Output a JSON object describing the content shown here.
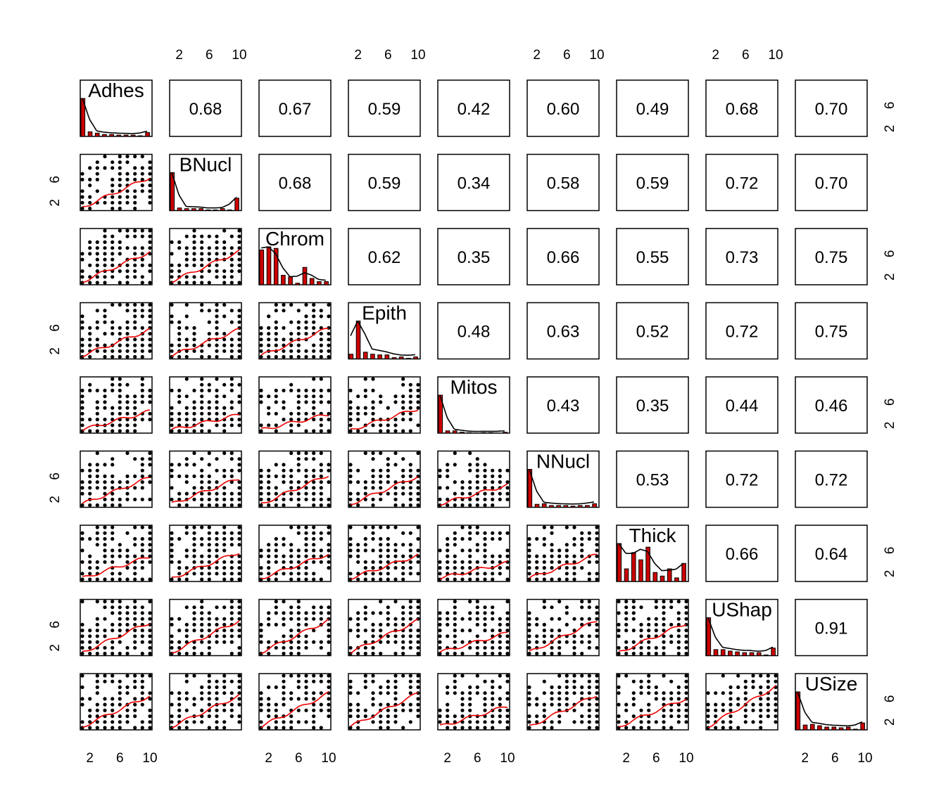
{
  "chart_data": {
    "type": "scatter-matrix",
    "title": "",
    "variables": [
      "Adhes",
      "BNucl",
      "Chrom",
      "Epith",
      "Mitos",
      "NNucl",
      "Thick",
      "UShap",
      "USize"
    ],
    "axis_range": [
      1,
      10
    ],
    "tick_labels": [
      "2",
      "6",
      "10"
    ],
    "tick_values": [
      2,
      6,
      10
    ],
    "correlations": [
      [
        null,
        0.68,
        0.67,
        0.59,
        0.42,
        0.6,
        0.49,
        0.68,
        0.7
      ],
      [
        null,
        null,
        0.68,
        0.59,
        0.34,
        0.58,
        0.59,
        0.72,
        0.7
      ],
      [
        null,
        null,
        null,
        0.62,
        0.35,
        0.66,
        0.55,
        0.73,
        0.75
      ],
      [
        null,
        null,
        null,
        null,
        0.48,
        0.63,
        0.52,
        0.72,
        0.75
      ],
      [
        null,
        null,
        null,
        null,
        null,
        0.43,
        0.35,
        0.44,
        0.46
      ],
      [
        null,
        null,
        null,
        null,
        null,
        null,
        0.53,
        0.72,
        0.72
      ],
      [
        null,
        null,
        null,
        null,
        null,
        null,
        null,
        0.66,
        0.64
      ],
      [
        null,
        null,
        null,
        null,
        null,
        null,
        null,
        null,
        0.91
      ],
      [
        null,
        null,
        null,
        null,
        null,
        null,
        null,
        null,
        null
      ]
    ],
    "correlation_labels": [
      [
        "",
        "0.68",
        "0.67",
        "0.59",
        "0.42",
        "0.60",
        "0.49",
        "0.68",
        "0.70"
      ],
      [
        "",
        "",
        "0.68",
        "0.59",
        "0.34",
        "0.58",
        "0.59",
        "0.72",
        "0.70"
      ],
      [
        "",
        "",
        "",
        "0.62",
        "0.35",
        "0.66",
        "0.55",
        "0.73",
        "0.75"
      ],
      [
        "",
        "",
        "",
        "",
        "0.48",
        "0.63",
        "0.52",
        "0.72",
        "0.75"
      ],
      [
        "",
        "",
        "",
        "",
        "",
        "0.43",
        "0.35",
        "0.44",
        "0.46"
      ],
      [
        "",
        "",
        "",
        "",
        "",
        "",
        "0.53",
        "0.72",
        "0.72"
      ],
      [
        "",
        "",
        "",
        "",
        "",
        "",
        "",
        "0.66",
        "0.64"
      ],
      [
        "",
        "",
        "",
        "",
        "",
        "",
        "",
        "",
        "0.91"
      ],
      [
        "",
        "",
        "",
        "",
        "",
        "",
        "",
        "",
        ""
      ]
    ],
    "histograms": {
      "Adhes": [
        0.58,
        0.07,
        0.05,
        0.03,
        0.03,
        0.02,
        0.02,
        0.02,
        0.01,
        0.06
      ],
      "BNucl": [
        0.58,
        0.04,
        0.03,
        0.03,
        0.03,
        0.01,
        0.01,
        0.03,
        0.01,
        0.19
      ],
      "Chrom": [
        0.22,
        0.24,
        0.23,
        0.06,
        0.05,
        0.01,
        0.11,
        0.04,
        0.02,
        0.02
      ],
      "Epith": [
        0.07,
        0.56,
        0.1,
        0.07,
        0.06,
        0.06,
        0.02,
        0.03,
        0.01,
        0.03
      ],
      "Mitos": [
        0.83,
        0.05,
        0.05,
        0.02,
        0.01,
        0.0,
        0.01,
        0.01,
        0.0,
        0.02
      ],
      "NNucl": [
        0.63,
        0.05,
        0.06,
        0.03,
        0.03,
        0.03,
        0.02,
        0.03,
        0.03,
        0.06
      ],
      "Thick": [
        0.21,
        0.07,
        0.16,
        0.12,
        0.19,
        0.05,
        0.03,
        0.07,
        0.02,
        0.1
      ],
      "UShap": [
        0.5,
        0.08,
        0.08,
        0.06,
        0.05,
        0.04,
        0.04,
        0.04,
        0.01,
        0.1
      ],
      "USize": [
        0.55,
        0.07,
        0.08,
        0.06,
        0.04,
        0.04,
        0.03,
        0.04,
        0.01,
        0.1
      ]
    },
    "density_color": "#000000",
    "histogram_color": "#cc0000",
    "smooth_color": "#ee0000",
    "point_color": "#000000"
  }
}
